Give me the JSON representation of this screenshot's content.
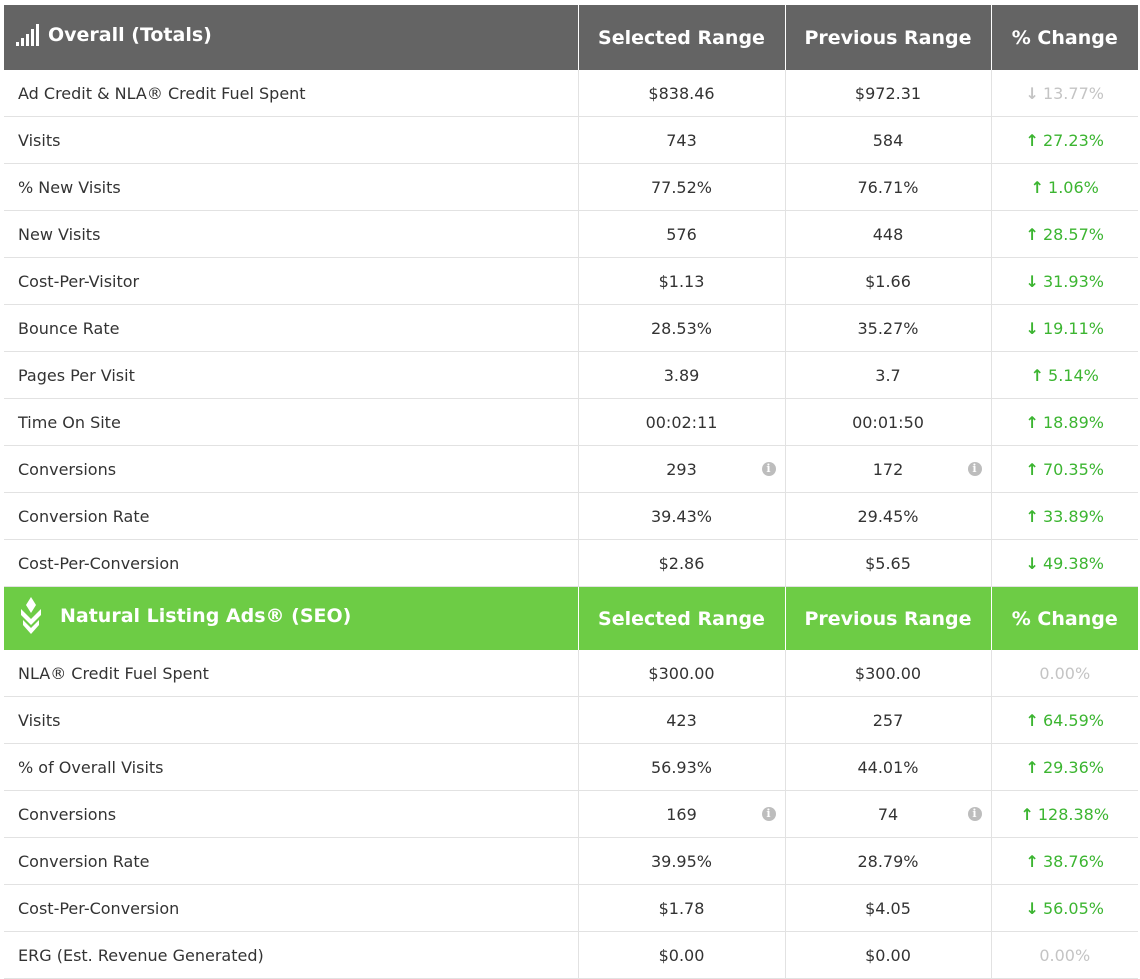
{
  "overall": {
    "title": "Overall (Totals)",
    "icon": "signal-bars-icon",
    "columns": [
      "Selected Range",
      "Previous Range",
      "% Change"
    ],
    "rows": [
      {
        "label": "Ad Credit & NLA® Credit Fuel Spent",
        "selected": "$838.46",
        "previous": "$972.31",
        "change": "13.77%",
        "dir": "down",
        "tone": "neutral",
        "info": false
      },
      {
        "label": "Visits",
        "selected": "743",
        "previous": "584",
        "change": "27.23%",
        "dir": "up",
        "tone": "good",
        "info": false
      },
      {
        "label": "% New Visits",
        "selected": "77.52%",
        "previous": "76.71%",
        "change": "1.06%",
        "dir": "up",
        "tone": "good",
        "info": false
      },
      {
        "label": "New Visits",
        "selected": "576",
        "previous": "448",
        "change": "28.57%",
        "dir": "up",
        "tone": "good",
        "info": false
      },
      {
        "label": "Cost-Per-Visitor",
        "selected": "$1.13",
        "previous": "$1.66",
        "change": "31.93%",
        "dir": "down",
        "tone": "good",
        "info": false
      },
      {
        "label": "Bounce Rate",
        "selected": "28.53%",
        "previous": "35.27%",
        "change": "19.11%",
        "dir": "down",
        "tone": "good",
        "info": false
      },
      {
        "label": "Pages Per Visit",
        "selected": "3.89",
        "previous": "3.7",
        "change": "5.14%",
        "dir": "up",
        "tone": "good",
        "info": false
      },
      {
        "label": "Time On Site",
        "selected": "00:02:11",
        "previous": "00:01:50",
        "change": "18.89%",
        "dir": "up",
        "tone": "good",
        "info": false
      },
      {
        "label": "Conversions",
        "selected": "293",
        "previous": "172",
        "change": "70.35%",
        "dir": "up",
        "tone": "good",
        "info": true
      },
      {
        "label": "Conversion Rate",
        "selected": "39.43%",
        "previous": "29.45%",
        "change": "33.89%",
        "dir": "up",
        "tone": "good",
        "info": false
      },
      {
        "label": "Cost-Per-Conversion",
        "selected": "$2.86",
        "previous": "$5.65",
        "change": "49.38%",
        "dir": "down",
        "tone": "good",
        "info": false
      }
    ]
  },
  "seo": {
    "title": "Natural Listing Ads® (SEO)",
    "icon": "leaf-logo-icon",
    "columns": [
      "Selected Range",
      "Previous Range",
      "% Change"
    ],
    "rows": [
      {
        "label": "NLA® Credit Fuel Spent",
        "selected": "$300.00",
        "previous": "$300.00",
        "change": "0.00%",
        "dir": "none",
        "tone": "neutral",
        "info": false
      },
      {
        "label": "Visits",
        "selected": "423",
        "previous": "257",
        "change": "64.59%",
        "dir": "up",
        "tone": "good",
        "info": false
      },
      {
        "label": "% of Overall Visits",
        "selected": "56.93%",
        "previous": "44.01%",
        "change": "29.36%",
        "dir": "up",
        "tone": "good",
        "info": false
      },
      {
        "label": "Conversions",
        "selected": "169",
        "previous": "74",
        "change": "128.38%",
        "dir": "up",
        "tone": "good",
        "info": true
      },
      {
        "label": "Conversion Rate",
        "selected": "39.95%",
        "previous": "28.79%",
        "change": "38.76%",
        "dir": "up",
        "tone": "good",
        "info": false
      },
      {
        "label": "Cost-Per-Conversion",
        "selected": "$1.78",
        "previous": "$4.05",
        "change": "56.05%",
        "dir": "down",
        "tone": "good",
        "info": false
      },
      {
        "label": "ERG (Est. Revenue Generated)",
        "selected": "$0.00",
        "previous": "$0.00",
        "change": "0.00%",
        "dir": "none",
        "tone": "neutral",
        "info": false
      }
    ]
  },
  "info_glyph": "i",
  "colors": {
    "overall_header": "#646464",
    "seo_header": "#6dcc45",
    "change_good": "#3cb531",
    "change_neutral": "#c4c4c4"
  }
}
